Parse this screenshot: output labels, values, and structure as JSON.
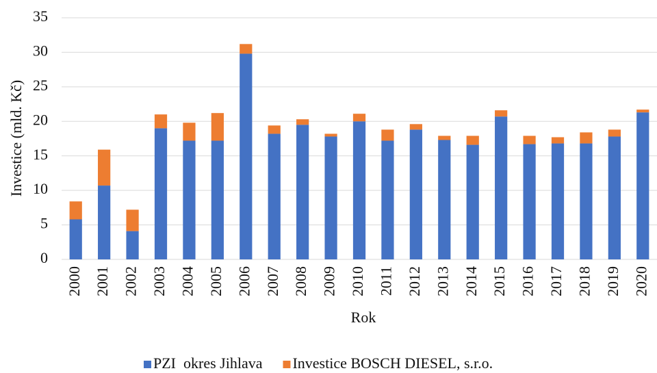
{
  "chart_data": {
    "type": "bar",
    "stacked": true,
    "y_label": "Investice (mld. Kč)",
    "x_label": "Rok",
    "categories": [
      "2000",
      "2001",
      "2002",
      "2003",
      "2004",
      "2005",
      "2006",
      "2007",
      "2008",
      "2009",
      "2010",
      "2011",
      "2012",
      "2013",
      "2014",
      "2015",
      "2016",
      "2017",
      "2018",
      "2019",
      "2020"
    ],
    "series": [
      {
        "name": "PZI  okres Jihlava",
        "color": "#4472c4",
        "values": [
          5.8,
          10.7,
          4.1,
          19.0,
          17.2,
          17.2,
          29.8,
          18.2,
          19.5,
          17.8,
          20.0,
          17.2,
          18.8,
          17.3,
          16.6,
          20.7,
          16.7,
          16.8,
          16.8,
          17.8,
          21.3
        ]
      },
      {
        "name": "Investice BOSCH DIESEL, s.r.o.",
        "color": "#ed7d31",
        "values": [
          2.6,
          5.2,
          3.1,
          2.0,
          2.6,
          4.0,
          1.4,
          1.2,
          0.8,
          0.4,
          1.1,
          1.6,
          0.8,
          0.6,
          1.3,
          0.9,
          1.2,
          0.9,
          1.6,
          1.0,
          0.4
        ]
      }
    ],
    "ylim": [
      0,
      35
    ],
    "yticks": [
      0,
      5,
      10,
      15,
      20,
      25,
      30,
      35
    ],
    "grid": true,
    "legend": "bottom"
  }
}
